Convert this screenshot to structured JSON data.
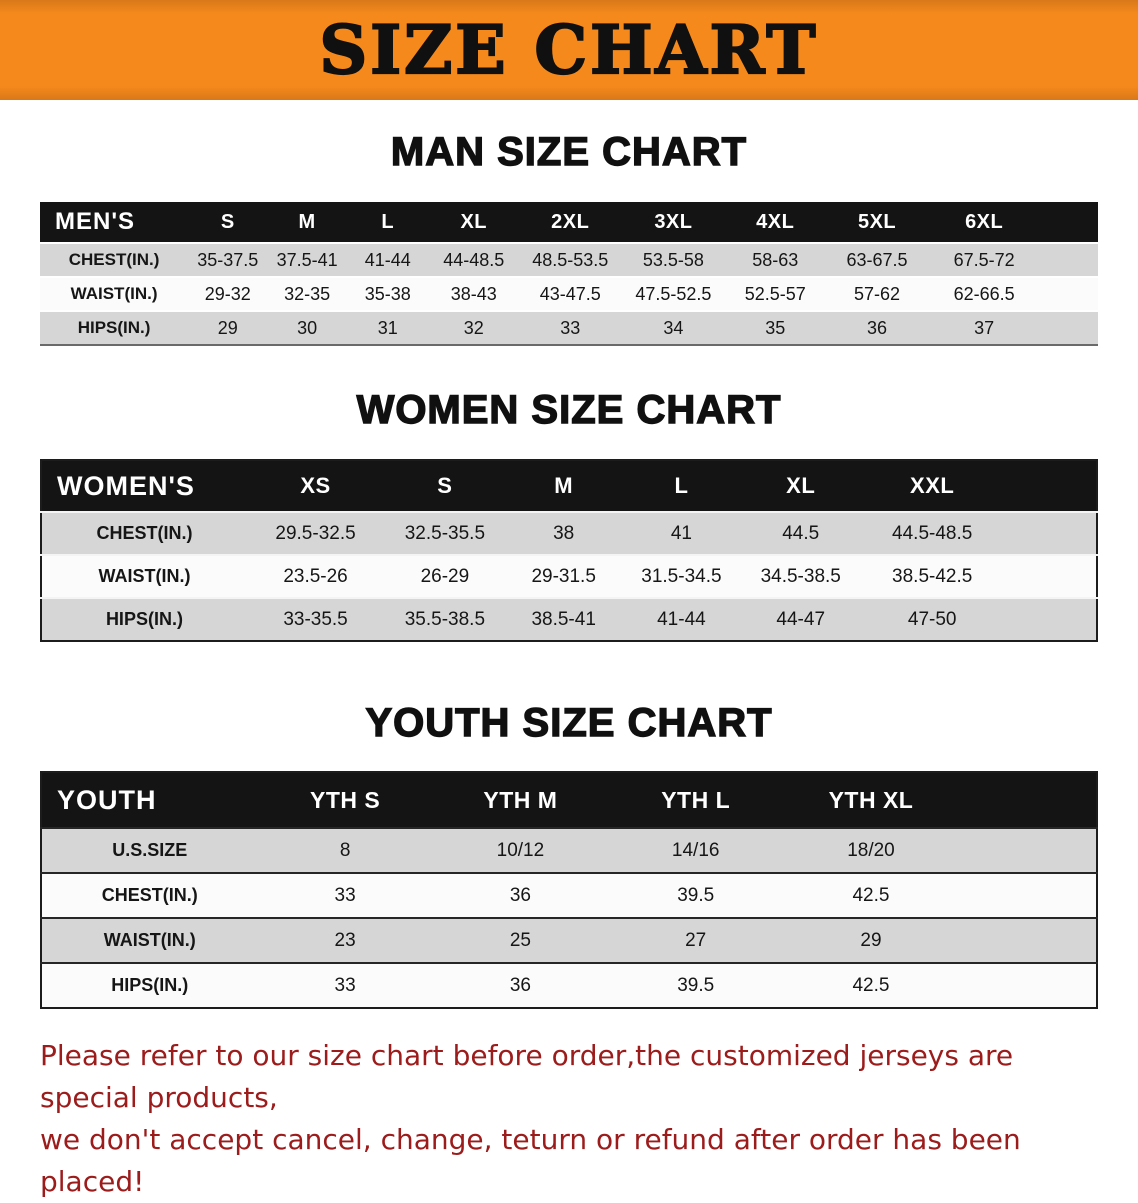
{
  "banner": {
    "title": "SIZE CHART"
  },
  "sections": [
    {
      "id": "men",
      "heading": "MAN SIZE CHART",
      "corner_label": "MEN'S",
      "columns": [
        "S",
        "M",
        "L",
        "XL",
        "2XL",
        "3XL",
        "4XL",
        "5XL",
        "6XL"
      ],
      "rows": [
        {
          "label": "CHEST(IN.)",
          "values": [
            "35-37.5",
            "37.5-41",
            "41-44",
            "44-48.5",
            "48.5-53.5",
            "53.5-58",
            "58-63",
            "63-67.5",
            "67.5-72"
          ]
        },
        {
          "label": "WAIST(IN.)",
          "values": [
            "29-32",
            "32-35",
            "35-38",
            "38-43",
            "43-47.5",
            "47.5-52.5",
            "52.5-57",
            "57-62",
            "62-66.5"
          ]
        },
        {
          "label": "HIPS(IN.)",
          "values": [
            "29",
            "30",
            "31",
            "32",
            "33",
            "34",
            "35",
            "36",
            "37"
          ]
        }
      ]
    },
    {
      "id": "women",
      "heading": "WOMEN SIZE CHART",
      "corner_label": "WOMEN'S",
      "columns": [
        "XS",
        "S",
        "M",
        "L",
        "XL",
        "XXL"
      ],
      "rows": [
        {
          "label": "CHEST(IN.)",
          "values": [
            "29.5-32.5",
            "32.5-35.5",
            "38",
            "41",
            "44.5",
            "44.5-48.5"
          ]
        },
        {
          "label": "WAIST(IN.)",
          "values": [
            "23.5-26",
            "26-29",
            "29-31.5",
            "31.5-34.5",
            "34.5-38.5",
            "38.5-42.5"
          ]
        },
        {
          "label": "HIPS(IN.)",
          "values": [
            "33-35.5",
            "35.5-38.5",
            "38.5-41",
            "41-44",
            "44-47",
            "47-50"
          ]
        }
      ]
    },
    {
      "id": "youth",
      "heading": "YOUTH SIZE CHART",
      "corner_label": "YOUTH",
      "columns": [
        "YTH S",
        "YTH M",
        "YTH L",
        "YTH XL"
      ],
      "rows": [
        {
          "label": "U.S.SIZE",
          "values": [
            "8",
            "10/12",
            "14/16",
            "18/20"
          ]
        },
        {
          "label": "CHEST(IN.)",
          "values": [
            "33",
            "36",
            "39.5",
            "42.5"
          ]
        },
        {
          "label": "WAIST(IN.)",
          "values": [
            "23",
            "25",
            "27",
            "29"
          ]
        },
        {
          "label": "HIPS(IN.)",
          "values": [
            "33",
            "36",
            "39.5",
            "42.5"
          ]
        }
      ]
    }
  ],
  "footer": {
    "lines": [
      "Please refer to our size chart before order,the customized jerseys are special products,",
      "we don't accept cancel, change, teturn or refund after order has been placed!"
    ]
  },
  "colors": {
    "banner_bg": "#F6891C",
    "header_bg": "#141414",
    "row_bg": "#FBFBFB",
    "row_alt_bg": "#D6D6D6",
    "title_color": "#101010",
    "footer_text": "#9C1C1C"
  }
}
